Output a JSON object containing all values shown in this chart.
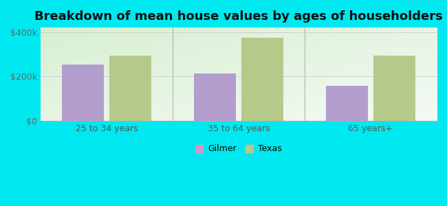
{
  "title": "Breakdown of mean house values by ages of householders",
  "categories": [
    "25 to 34 years",
    "35 to 64 years",
    "65 years+"
  ],
  "gilmer_values": [
    255000,
    215000,
    158000
  ],
  "texas_values": [
    295000,
    375000,
    295000
  ],
  "gilmer_color": "#b39dcc",
  "texas_color": "#b5c98a",
  "background_color": "#00e8f0",
  "ylim": [
    0,
    420000
  ],
  "ytick_labels": [
    "$0",
    "$200k",
    "$400k"
  ],
  "ytick_values": [
    0,
    200000,
    400000
  ],
  "legend_labels": [
    "Gilmer",
    "Texas"
  ],
  "legend_gilmer_color": "#cc99cc",
  "legend_texas_color": "#b5c98a",
  "bar_width": 0.32,
  "title_fontsize": 13,
  "tick_fontsize": 9,
  "legend_fontsize": 9
}
